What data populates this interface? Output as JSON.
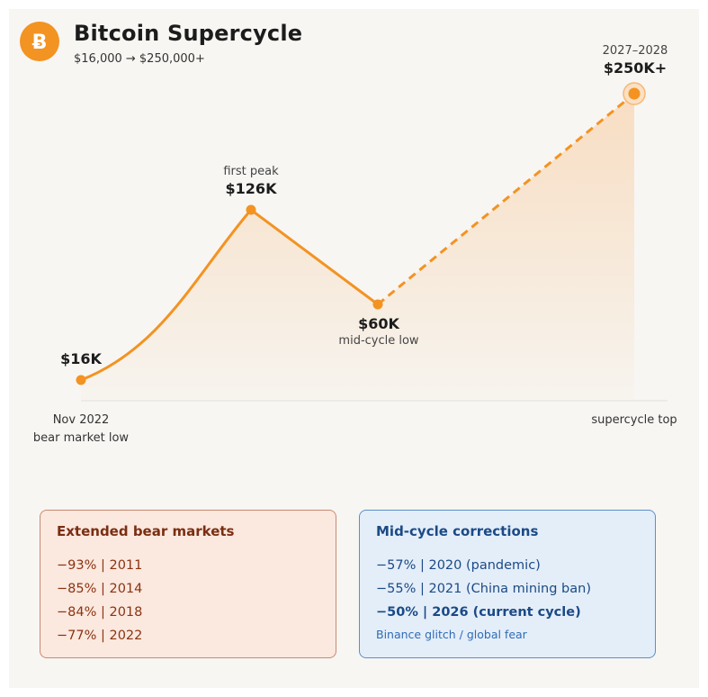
{
  "header": {
    "title": "Bitcoin Supercycle",
    "subtitle": "$16,000 → $250,000+",
    "logo_icon": "bitcoin-icon",
    "logo_letter": "Ƀ"
  },
  "chart_data": {
    "type": "line",
    "title": "Bitcoin Supercycle",
    "subtitle": "$16,000 → $250,000+",
    "points": [
      {
        "label": "$16K",
        "note": "",
        "value": 16000,
        "x_label": "Nov 2022",
        "x_label2": "bear market low"
      },
      {
        "label": "$126K",
        "note": "first peak",
        "value": 126000
      },
      {
        "label": "$60K",
        "note": "mid-cycle low",
        "value": 60000
      },
      {
        "label": "$250K+",
        "note": "2027–2028",
        "value": 250000,
        "x_label": "supercycle top",
        "projected": true
      }
    ],
    "series_colors": {
      "line": "#f39322",
      "area": "#f8c99a"
    },
    "grid": false
  },
  "boxes": {
    "bear": {
      "title": "Extended bear markets",
      "rows": [
        "−93% | 2011",
        "−85% | 2014",
        "−84% | 2018",
        "−77% | 2022"
      ]
    },
    "mid": {
      "title": "Mid-cycle corrections",
      "rows": [
        "−57% | 2020 (pandemic)",
        "−55% | 2021 (China mining ban)",
        "−50% | 2026 (current cycle)"
      ],
      "note": "Binance glitch / global fear"
    }
  }
}
